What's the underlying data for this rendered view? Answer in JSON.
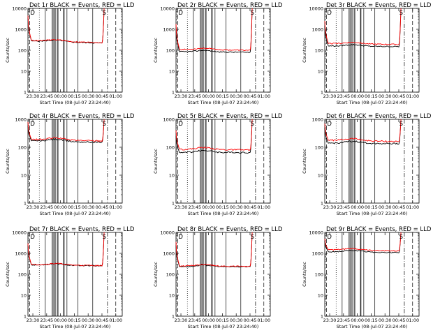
{
  "colors": {
    "events": "#000000",
    "lld": "#ff0000",
    "background": "#ffffff"
  },
  "chart_data": [
    {
      "type": "line",
      "title": "Det 1r BLACK = Events, RED = LLD",
      "xlabel": "Start Time (08-Jul-07 23:24:40)",
      "ylabel": "Counts/sec",
      "y_scale": "log",
      "ylim": [
        1,
        10000
      ],
      "xlim": [
        "23:24:40",
        "01:07:00"
      ],
      "x_ticks": [
        "23:30",
        "23:45",
        "00:00",
        "00:15",
        "00:30",
        "00:45",
        "01:00"
      ],
      "y_ticks": [
        "1",
        "10",
        "100",
        "1000",
        "10000"
      ],
      "markers": [
        "D",
        "S"
      ],
      "series": [
        {
          "color": "#000000",
          "level_start": 280,
          "level_end": 220,
          "rise_start": 4000,
          "rise_end": 10000
        },
        {
          "color": "#ff0000",
          "level_start": 290,
          "level_end": 230,
          "rise_start": 4500,
          "rise_end": 10000
        }
      ]
    },
    {
      "type": "line",
      "title": "Det 2r BLACK = Events, RED = LLD",
      "xlabel": "Start Time (08-Jul-07 23:24:40)",
      "ylabel": "Counts/sec",
      "y_scale": "log",
      "ylim": [
        1,
        10000
      ],
      "xlim": [
        "23:24:40",
        "01:07:00"
      ],
      "x_ticks": [
        "23:30",
        "23:45",
        "00:00",
        "00:15",
        "00:30",
        "00:45",
        "01:00"
      ],
      "y_ticks": [
        "1",
        "10",
        "100",
        "1000",
        "10000"
      ],
      "markers": [
        "D",
        "S"
      ],
      "series": [
        {
          "color": "#000000",
          "level_start": 85,
          "level_end": 80,
          "rise_start": 1200,
          "rise_end": 10000
        },
        {
          "color": "#ff0000",
          "level_start": 110,
          "level_end": 100,
          "rise_start": 1800,
          "rise_end": 10000
        }
      ]
    },
    {
      "type": "line",
      "title": "Det 3r BLACK = Events, RED = LLD",
      "xlabel": "Start Time (08-Jul-07 23:24:40)",
      "ylabel": "Counts/sec",
      "y_scale": "log",
      "ylim": [
        1,
        10000
      ],
      "xlim": [
        "23:24:40",
        "01:07:00"
      ],
      "x_ticks": [
        "23:30",
        "23:45",
        "00:00",
        "00:15",
        "00:30",
        "00:45",
        "01:00"
      ],
      "y_ticks": [
        "1",
        "10",
        "100",
        "1000",
        "10000"
      ],
      "markers": [
        "D",
        "S"
      ],
      "series": [
        {
          "color": "#000000",
          "level_start": 160,
          "level_end": 150,
          "rise_start": 1500,
          "rise_end": 10000
        },
        {
          "color": "#ff0000",
          "level_start": 210,
          "level_end": 190,
          "rise_start": 2500,
          "rise_end": 10000
        }
      ]
    },
    {
      "type": "line",
      "title": "Det 4r BLACK = Events, RED = LLD",
      "xlabel": "Start Time (08-Jul-07 23:24:40)",
      "ylabel": "Counts/sec",
      "y_scale": "log",
      "ylim": [
        1,
        1000
      ],
      "xlim": [
        "23:24:40",
        "01:07:00"
      ],
      "x_ticks": [
        "23:30",
        "23:45",
        "00:00",
        "00:15",
        "00:30",
        "00:45",
        "01:00"
      ],
      "y_ticks": [
        "1",
        "10",
        "100",
        "1000"
      ],
      "markers": [
        "D",
        "S"
      ],
      "series": [
        {
          "color": "#000000",
          "level_start": 170,
          "level_end": 150,
          "rise_start": 600,
          "rise_end": 1000
        },
        {
          "color": "#ff0000",
          "level_start": 190,
          "level_end": 170,
          "rise_start": 800,
          "rise_end": 1000
        }
      ]
    },
    {
      "type": "line",
      "title": "Det 5r BLACK = Events, RED = LLD",
      "xlabel": "Start Time (08-Jul-07 23:24:40)",
      "ylabel": "Counts/sec",
      "y_scale": "log",
      "ylim": [
        1,
        1000
      ],
      "xlim": [
        "23:24:40",
        "01:07:00"
      ],
      "x_ticks": [
        "23:30",
        "23:45",
        "00:00",
        "00:15",
        "00:30",
        "00:45",
        "01:00"
      ],
      "y_ticks": [
        "1",
        "10",
        "100",
        "1000"
      ],
      "markers": [
        "D",
        "S"
      ],
      "series": [
        {
          "color": "#000000",
          "level_start": 65,
          "level_end": 65,
          "rise_start": 250,
          "rise_end": 1000
        },
        {
          "color": "#ff0000",
          "level_start": 85,
          "level_end": 80,
          "rise_start": 400,
          "rise_end": 1000
        }
      ]
    },
    {
      "type": "line",
      "title": "Det 6r BLACK = Events, RED = LLD",
      "xlabel": "Start Time (08-Jul-07 23:24:40)",
      "ylabel": "Counts/sec",
      "y_scale": "log",
      "ylim": [
        1,
        1000
      ],
      "xlim": [
        "23:24:40",
        "01:07:00"
      ],
      "x_ticks": [
        "23:30",
        "23:45",
        "00:00",
        "00:15",
        "00:30",
        "00:45",
        "01:00"
      ],
      "y_ticks": [
        "1",
        "10",
        "100",
        "1000"
      ],
      "markers": [
        "D",
        "S"
      ],
      "series": [
        {
          "color": "#000000",
          "level_start": 140,
          "level_end": 135,
          "rise_start": 500,
          "rise_end": 1000
        },
        {
          "color": "#ff0000",
          "level_start": 180,
          "level_end": 160,
          "rise_start": 700,
          "rise_end": 1000
        }
      ]
    },
    {
      "type": "line",
      "title": "Det 7r BLACK = Events, RED = LLD",
      "xlabel": "Start Time (08-Jul-07 23:24:40)",
      "ylabel": "Counts/sec",
      "y_scale": "log",
      "ylim": [
        1,
        10000
      ],
      "xlim": [
        "23:24:40",
        "01:07:00"
      ],
      "x_ticks": [
        "23:30",
        "23:45",
        "00:00",
        "00:15",
        "00:30",
        "00:45",
        "01:00"
      ],
      "y_ticks": [
        "1",
        "10",
        "100",
        "1000",
        "10000"
      ],
      "markers": [
        "D",
        "S"
      ],
      "series": [
        {
          "color": "#000000",
          "level_start": 280,
          "level_end": 250,
          "rise_start": 2500,
          "rise_end": 10000
        },
        {
          "color": "#ff0000",
          "level_start": 290,
          "level_end": 260,
          "rise_start": 3000,
          "rise_end": 10000
        }
      ]
    },
    {
      "type": "line",
      "title": "Det 8r BLACK = Events, RED = LLD",
      "xlabel": "Start Time (08-Jul-07 23:24:40)",
      "ylabel": "Counts/sec",
      "y_scale": "log",
      "ylim": [
        1,
        10000
      ],
      "xlim": [
        "23:24:40",
        "01:07:00"
      ],
      "x_ticks": [
        "23:30",
        "23:45",
        "00:00",
        "00:15",
        "00:30",
        "00:45",
        "01:00"
      ],
      "y_ticks": [
        "1",
        "10",
        "100",
        "1000",
        "10000"
      ],
      "markers": [
        "D",
        "S"
      ],
      "series": [
        {
          "color": "#000000",
          "level_start": 230,
          "level_end": 230,
          "rise_start": 2500,
          "rise_end": 10000
        },
        {
          "color": "#ff0000",
          "level_start": 250,
          "level_end": 240,
          "rise_start": 3500,
          "rise_end": 10000
        }
      ]
    },
    {
      "type": "line",
      "title": "Det 9r BLACK = Events, RED = LLD",
      "xlabel": "Start Time (08-Jul-07 23:24:40)",
      "ylabel": "Counts/sec",
      "y_scale": "log",
      "ylim": [
        1,
        10000
      ],
      "xlim": [
        "23:24:40",
        "01:07:00"
      ],
      "x_ticks": [
        "23:30",
        "23:45",
        "00:00",
        "00:15",
        "00:30",
        "00:45",
        "01:00"
      ],
      "y_ticks": [
        "1",
        "10",
        "100",
        "1000",
        "10000"
      ],
      "markers": [
        "D",
        "S"
      ],
      "series": [
        {
          "color": "#000000",
          "level_start": 1200,
          "level_end": 1100,
          "rise_start": 4000,
          "rise_end": 10000
        },
        {
          "color": "#ff0000",
          "level_start": 1500,
          "level_end": 1300,
          "rise_start": 5000,
          "rise_end": 10000
        }
      ]
    }
  ]
}
